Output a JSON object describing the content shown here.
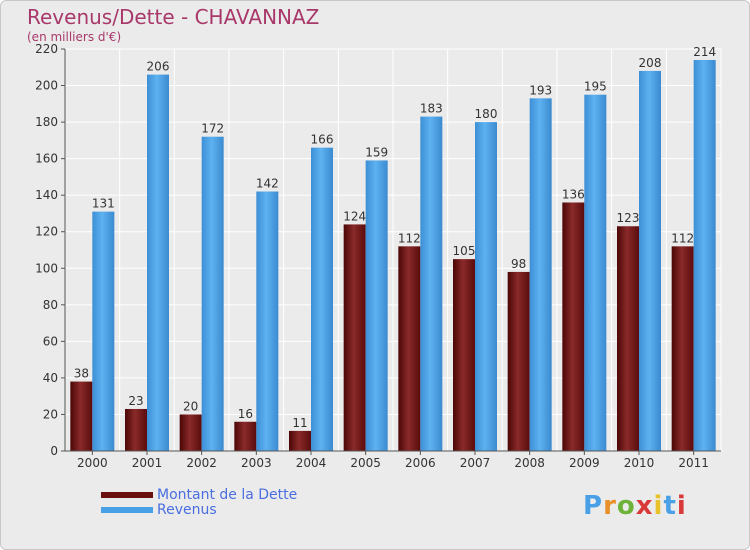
{
  "title": "Revenus/Dette - CHAVANNAZ",
  "subtitle": "(en milliers d'€)",
  "logo_text": "Proxiti",
  "colors": {
    "dette": "#6a1010",
    "revenus": "#4aa0e6",
    "title": "#a8386a",
    "legend_text": "#4a6ee0"
  },
  "chart_data": {
    "type": "bar",
    "categories": [
      "2000",
      "2001",
      "2002",
      "2003",
      "2004",
      "2005",
      "2006",
      "2007",
      "2008",
      "2009",
      "2010",
      "2011"
    ],
    "series": [
      {
        "name": "Montant de la Dette",
        "values": [
          38,
          23,
          20,
          16,
          11,
          124,
          112,
          105,
          98,
          136,
          123,
          112
        ]
      },
      {
        "name": "Revenus",
        "values": [
          131,
          206,
          172,
          142,
          166,
          159,
          183,
          180,
          193,
          195,
          208,
          214
        ]
      }
    ],
    "yticks": [
      0,
      20,
      40,
      60,
      80,
      100,
      120,
      140,
      160,
      180,
      200,
      220
    ],
    "ylim": [
      0,
      220
    ],
    "grid": true,
    "legend_position": "bottom-left"
  }
}
